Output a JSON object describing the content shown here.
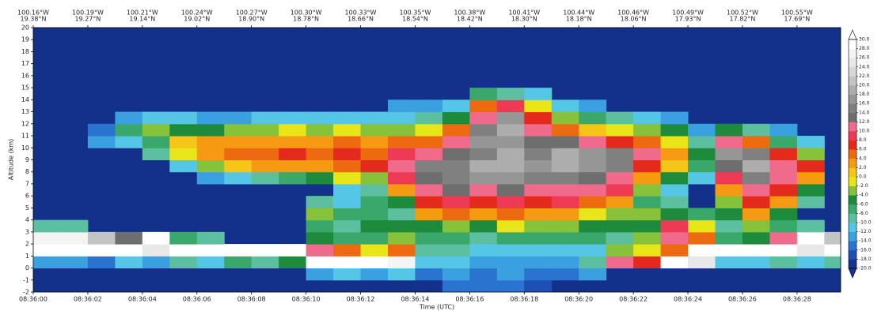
{
  "chart_data": {
    "type": "heatmap",
    "xlabel": "Time (UTC)",
    "ylabel": "Altitude (km)",
    "xlim": [
      0,
      29.6
    ],
    "ylim": [
      -2,
      20
    ],
    "xticks": [
      {
        "value": 0,
        "label": "08:36:00"
      },
      {
        "value": 2,
        "label": "08:36:02"
      },
      {
        "value": 4,
        "label": "08:36:04"
      },
      {
        "value": 6,
        "label": "08:36:06"
      },
      {
        "value": 8,
        "label": "08:36:08"
      },
      {
        "value": 10,
        "label": "08:36:10"
      },
      {
        "value": 12,
        "label": "08:36:12"
      },
      {
        "value": 14,
        "label": "08:36:14"
      },
      {
        "value": 16,
        "label": "08:36:16"
      },
      {
        "value": 18,
        "label": "08:36:18"
      },
      {
        "value": 20,
        "label": "08:36:20"
      },
      {
        "value": 22,
        "label": "08:36:22"
      },
      {
        "value": 24,
        "label": "08:36:24"
      },
      {
        "value": 26,
        "label": "08:36:26"
      },
      {
        "value": 28,
        "label": "08:36:28"
      }
    ],
    "top_ticks": [
      {
        "value": 0,
        "lon": "100.16°W",
        "lat": "19.38°N"
      },
      {
        "value": 2,
        "lon": "100.19°W",
        "lat": "19.27°N"
      },
      {
        "value": 4,
        "lon": "100.21°W",
        "lat": "19.14°N"
      },
      {
        "value": 6,
        "lon": "100.24°W",
        "lat": "19.02°N"
      },
      {
        "value": 8,
        "lon": "100.27°W",
        "lat": "18.90°N"
      },
      {
        "value": 10,
        "lon": "100.30°W",
        "lat": "18.78°N"
      },
      {
        "value": 12,
        "lon": "100.33°W",
        "lat": "18.66°N"
      },
      {
        "value": 14,
        "lon": "100.35°W",
        "lat": "18.54°N"
      },
      {
        "value": 16,
        "lon": "100.38°W",
        "lat": "18.42°N"
      },
      {
        "value": 18,
        "lon": "100.41°W",
        "lat": "18.30°N"
      },
      {
        "value": 20,
        "lon": "100.44°W",
        "lat": "18.18°N"
      },
      {
        "value": 22,
        "lon": "100.46°W",
        "lat": "18.06°N"
      },
      {
        "value": 24,
        "lon": "100.49°W",
        "lat": "17.93°N"
      },
      {
        "value": 26,
        "lon": "100.52°W",
        "lat": "17.82°N"
      },
      {
        "value": 28,
        "lon": "100.55°W",
        "lat": "17.69°N"
      }
    ],
    "yticks": [
      -2,
      -1,
      0,
      1,
      2,
      3,
      4,
      5,
      6,
      7,
      8,
      9,
      10,
      11,
      12,
      13,
      14,
      15,
      16,
      17,
      18,
      19,
      20
    ],
    "background": "#13308a",
    "clim": [
      -20,
      30
    ],
    "cticks": [
      {
        "value": -20,
        "label": "-20.0"
      },
      {
        "value": -18,
        "label": "-18.0"
      },
      {
        "value": -16,
        "label": "-16.0"
      },
      {
        "value": -14,
        "label": "-14.0"
      },
      {
        "value": -12,
        "label": "-12.0"
      },
      {
        "value": -10,
        "label": "-10.0"
      },
      {
        "value": -8,
        "label": "-8.0"
      },
      {
        "value": -6,
        "label": "-6.0"
      },
      {
        "value": -4,
        "label": "-4.0"
      },
      {
        "value": -2,
        "label": "-2.0"
      },
      {
        "value": 0,
        "label": "0.0"
      },
      {
        "value": 2,
        "label": "2.0"
      },
      {
        "value": 4,
        "label": "4.0"
      },
      {
        "value": 6,
        "label": "6.0"
      },
      {
        "value": 8,
        "label": "8.0"
      },
      {
        "value": 10,
        "label": "10.0"
      },
      {
        "value": 12,
        "label": "12.0"
      },
      {
        "value": 14,
        "label": "14.0"
      },
      {
        "value": 16,
        "label": "16.0"
      },
      {
        "value": 18,
        "label": "18.0"
      },
      {
        "value": 20,
        "label": "20.0"
      },
      {
        "value": 22,
        "label": "22.0"
      },
      {
        "value": 24,
        "label": "24.0"
      },
      {
        "value": 26,
        "label": "26.0"
      },
      {
        "value": 28,
        "label": "28.0"
      },
      {
        "value": 30,
        "label": "30.0"
      }
    ],
    "colors": [
      "#16338f",
      "#1e4fb4",
      "#2a74d0",
      "#3aa0e0",
      "#56c6e6",
      "#5cbfa0",
      "#3aa86a",
      "#1d8a3c",
      "#86c23a",
      "#e8e619",
      "#f5c518",
      "#f59a12",
      "#ee6a10",
      "#e42a1c",
      "#ee3a55",
      "#f06a8c",
      "#6e6e6e",
      "#808080",
      "#969696",
      "#adadad",
      "#c4c4c4",
      "#d8d8d8",
      "#e8e8e8",
      "#f4f4f4",
      "#ffffff"
    ],
    "x": [
      0.5,
      1.5,
      2.5,
      3.5,
      4.5,
      5.5,
      6.5,
      7.5,
      8.5,
      9.5,
      10.5,
      11.5,
      12.5,
      13.5,
      14.5,
      15.5,
      16.5,
      17.5,
      18.5,
      19.5,
      20.5,
      21.5,
      22.5,
      23.5,
      24.5,
      25.5,
      26.5,
      27.5,
      28.5,
      29.5
    ],
    "y": [
      -1.5,
      -0.5,
      0.5,
      1.5,
      2.5,
      3.5,
      4.5,
      5.5,
      6.5,
      7.5,
      8.5,
      9.5,
      10.5,
      11.5,
      12.5,
      13.5,
      14.5,
      15.5,
      16.5,
      17.5,
      18.5,
      19.5
    ],
    "z": [
      [
        null,
        null,
        -14,
        30,
        26,
        -10,
        null,
        null,
        null,
        null,
        null,
        null,
        null,
        null,
        null,
        null,
        null,
        null,
        null,
        null,
        null,
        null
      ],
      [
        null,
        null,
        -14,
        30,
        26,
        -10,
        null,
        null,
        null,
        null,
        null,
        null,
        null,
        null,
        null,
        null,
        null,
        null,
        null,
        null,
        null,
        null
      ],
      [
        null,
        null,
        -16,
        30,
        20,
        null,
        null,
        null,
        null,
        null,
        null,
        null,
        -14,
        -16,
        null,
        null,
        null,
        null,
        null,
        null,
        null,
        null
      ],
      [
        null,
        null,
        -12,
        30,
        12,
        null,
        null,
        null,
        null,
        null,
        null,
        null,
        -12,
        -8,
        -14,
        null,
        null,
        null,
        null,
        null,
        null,
        null
      ],
      [
        null,
        null,
        -14,
        24,
        30,
        null,
        null,
        null,
        null,
        null,
        null,
        -10,
        -8,
        -4,
        -12,
        null,
        null,
        null,
        null,
        null,
        null,
        null
      ],
      [
        null,
        null,
        -10,
        30,
        -8,
        null,
        null,
        null,
        null,
        null,
        -12,
        -2,
        0,
        -6,
        -12,
        null,
        null,
        null,
        null,
        null,
        null,
        null
      ],
      [
        null,
        null,
        -12,
        30,
        -10,
        null,
        null,
        null,
        null,
        -14,
        -4,
        2,
        2,
        -6,
        -14,
        null,
        null,
        null,
        null,
        null,
        null,
        null
      ],
      [
        null,
        null,
        -8,
        30,
        null,
        null,
        null,
        null,
        null,
        -12,
        0,
        4,
        2,
        -4,
        -14,
        null,
        null,
        null,
        null,
        null,
        null,
        null
      ],
      [
        null,
        null,
        -10,
        30,
        null,
        null,
        null,
        null,
        null,
        -10,
        2,
        4,
        2,
        -4,
        -12,
        null,
        null,
        null,
        null,
        null,
        null,
        null
      ],
      [
        null,
        null,
        -6,
        30,
        null,
        null,
        null,
        null,
        null,
        -8,
        2,
        6,
        2,
        -2,
        -12,
        null,
        null,
        null,
        null,
        null,
        null,
        null
      ],
      [
        null,
        -14,
        28,
        10,
        -6,
        -8,
        -4,
        -10,
        null,
        -6,
        2,
        4,
        2,
        -4,
        -12,
        null,
        null,
        null,
        null,
        null,
        null,
        null
      ],
      [
        null,
        -12,
        30,
        4,
        -8,
        -10,
        -8,
        -12,
        -12,
        -2,
        4,
        6,
        4,
        -2,
        -12,
        null,
        null,
        null,
        null,
        null,
        null,
        null
      ],
      [
        null,
        -14,
        30,
        -2,
        -8,
        -6,
        -8,
        -8,
        -10,
        -4,
        6,
        4,
        2,
        -4,
        -12,
        null,
        null,
        null,
        null,
        null,
        null,
        null
      ],
      [
        null,
        -12,
        26,
        4,
        -4,
        -6,
        -10,
        -6,
        2,
        8,
        10,
        8,
        4,
        -4,
        -12,
        -14,
        null,
        null,
        null,
        null,
        null,
        null
      ],
      [
        null,
        -16,
        -12,
        -10,
        -8,
        -6,
        2,
        6,
        10,
        12,
        14,
        10,
        4,
        -2,
        -10,
        -14,
        null,
        null,
        null,
        null,
        null,
        null
      ],
      [
        -16,
        -14,
        -12,
        -10,
        -8,
        -4,
        4,
        8,
        12,
        14,
        14,
        12,
        10,
        4,
        -6,
        -12,
        null,
        null,
        null,
        null,
        null,
        null
      ],
      [
        -16,
        -16,
        -14,
        -12,
        -10,
        -6,
        2,
        6,
        10,
        16,
        18,
        14,
        16,
        14,
        10,
        4,
        -8,
        null,
        null,
        null,
        null,
        null
      ],
      [
        -16,
        -14,
        -14,
        -12,
        -8,
        -2,
        4,
        8,
        12,
        16,
        18,
        18,
        16,
        18,
        16,
        8,
        -10,
        null,
        null,
        null,
        null,
        null
      ],
      [
        -18,
        -16,
        -14,
        -12,
        -8,
        -4,
        2,
        6,
        10,
        14,
        16,
        14,
        12,
        10,
        6,
        -2,
        -12,
        null,
        null,
        null,
        null,
        null
      ],
      [
        null,
        -16,
        -14,
        -12,
        -8,
        -4,
        2,
        8,
        10,
        14,
        18,
        18,
        12,
        4,
        -4,
        -12,
        null,
        null,
        null,
        null,
        null,
        null
      ],
      [
        null,
        -14,
        -10,
        -12,
        -8,
        -6,
        -2,
        4,
        10,
        12,
        16,
        16,
        10,
        0,
        -8,
        -14,
        null,
        null,
        null,
        null,
        null,
        null
      ],
      [
        null,
        null,
        10,
        -4,
        -10,
        -6,
        -4,
        2,
        8,
        10,
        14,
        14,
        6,
        -2,
        -10,
        null,
        null,
        null,
        null,
        null,
        null,
        null
      ],
      [
        null,
        null,
        6,
        -2,
        -4,
        -6,
        -4,
        -8,
        -4,
        2,
        6,
        10,
        4,
        -4,
        -12,
        null,
        null,
        null,
        null,
        null,
        null,
        null
      ],
      [
        null,
        null,
        28,
        4,
        10,
        8,
        -6,
        -10,
        -12,
        -6,
        0,
        2,
        -2,
        -6,
        -14,
        null,
        null,
        null,
        null,
        null,
        null,
        null
      ],
      [
        null,
        null,
        24,
        28,
        4,
        -2,
        -8,
        null,
        null,
        -12,
        -8,
        -6,
        -10,
        -14,
        null,
        null,
        null,
        null,
        null,
        null,
        null,
        null
      ],
      [
        null,
        null,
        -12,
        30,
        -8,
        -10,
        -6,
        -4,
        2,
        8,
        12,
        16,
        10,
        -6,
        null,
        null,
        null,
        null,
        null,
        null,
        null,
        null
      ],
      [
        null,
        null,
        -12,
        30,
        -6,
        -4,
        2,
        6,
        10,
        14,
        18,
        14,
        4,
        -10,
        null,
        null,
        null,
        null,
        null,
        null,
        null,
        null
      ],
      [
        null,
        null,
        -10,
        30,
        10,
        -8,
        -6,
        2,
        6,
        10,
        10,
        6,
        -8,
        -14,
        null,
        null,
        null,
        null,
        null,
        null,
        null,
        null
      ],
      [
        null,
        null,
        -12,
        24,
        30,
        -10,
        null,
        -10,
        -6,
        2,
        6,
        -4,
        -12,
        null,
        null,
        null,
        null,
        null,
        null,
        null,
        null,
        null
      ],
      [
        null,
        null,
        -10,
        28,
        20,
        null,
        null,
        null,
        null,
        null,
        null,
        null,
        null,
        null,
        null,
        null,
        null,
        null,
        null,
        null,
        null,
        null
      ]
    ]
  }
}
